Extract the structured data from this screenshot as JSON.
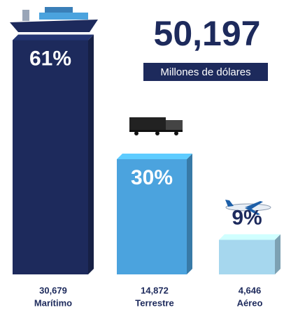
{
  "chart_data": {
    "type": "bar",
    "title": "50,197",
    "subtitle": "Millones de dólares",
    "categories": [
      "Marítimo",
      "Terrestre",
      "Aéreo"
    ],
    "values": [
      61,
      30,
      9
    ],
    "value_labels": [
      "61%",
      "30%",
      "9%"
    ],
    "amounts": [
      30679,
      14872,
      4646
    ],
    "amount_labels": [
      "30,679",
      "14,872",
      "4,646"
    ],
    "colors": [
      "#1d2a5c",
      "#4ba3de",
      "#a6d7ee"
    ]
  }
}
